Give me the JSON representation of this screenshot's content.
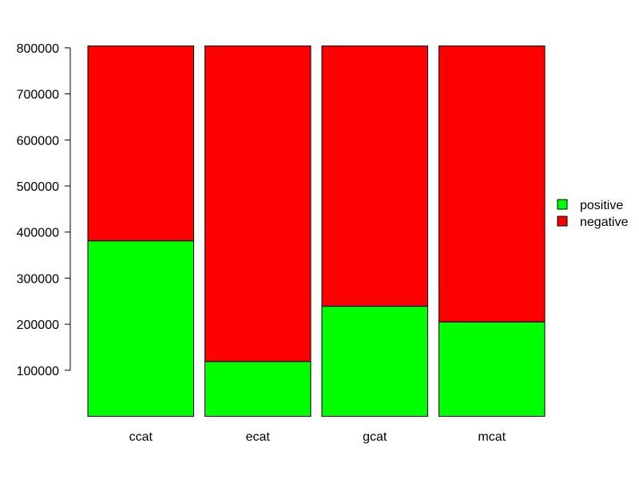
{
  "chart_data": {
    "type": "bar",
    "stacked": true,
    "categories": [
      "ccat",
      "ecat",
      "gcat",
      "mcat"
    ],
    "series": [
      {
        "name": "positive",
        "color": "#00ff00",
        "values": [
          381000,
          119000,
          239000,
          205000
        ]
      },
      {
        "name": "negative",
        "color": "#ff0000",
        "values": [
          423000,
          685000,
          565000,
          599000
        ]
      }
    ],
    "y_ticks": [
      100000,
      200000,
      300000,
      400000,
      500000,
      600000,
      700000,
      800000
    ],
    "y_tick_labels": [
      "100000",
      "200000",
      "300000",
      "400000",
      "500000",
      "600000",
      "700000",
      "800000"
    ],
    "ylim": [
      0,
      804000
    ],
    "grid": false,
    "legend": {
      "position": "right",
      "entries": [
        "positive",
        "negative"
      ]
    },
    "title": "",
    "xlabel": "",
    "ylabel": ""
  }
}
